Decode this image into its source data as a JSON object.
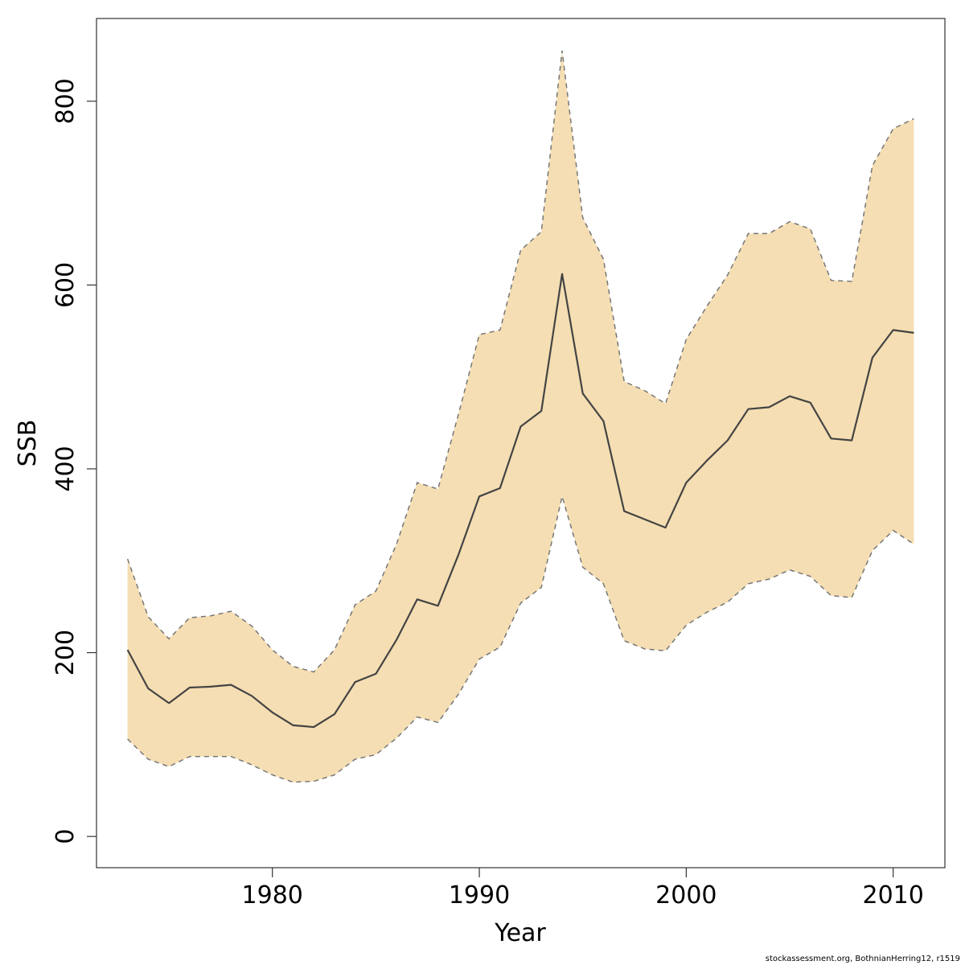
{
  "chart_data": {
    "type": "line",
    "title": "",
    "xlabel": "Year",
    "ylabel": "SSB",
    "xlim": [
      1971.5,
      2012.5
    ],
    "ylim": [
      -34,
      890
    ],
    "x_ticks": [
      1980,
      1990,
      2000,
      2010
    ],
    "y_ticks": [
      0,
      200,
      400,
      600,
      800
    ],
    "grid": false,
    "legend": "none",
    "colors": {
      "band": "#F5DEB3",
      "line": "#444444",
      "bound": "#777777",
      "axis": "#333333"
    },
    "x": [
      1973,
      1974,
      1975,
      1976,
      1977,
      1978,
      1979,
      1980,
      1981,
      1982,
      1983,
      1984,
      1985,
      1986,
      1987,
      1988,
      1989,
      1990,
      1991,
      1992,
      1993,
      1994,
      1995,
      1996,
      1997,
      1998,
      1999,
      2000,
      2001,
      2002,
      2003,
      2004,
      2005,
      2006,
      2007,
      2008,
      2009,
      2010,
      2011
    ],
    "series": [
      {
        "role": "estimate",
        "values": [
          203,
          161,
          145,
          162,
          163,
          165,
          153,
          135,
          121,
          119,
          133,
          168,
          177,
          214,
          258,
          251,
          307,
          370,
          379,
          446,
          463,
          612,
          482,
          452,
          354,
          345,
          336,
          385,
          409,
          431,
          465,
          467,
          479,
          472,
          433,
          431,
          521,
          551,
          548
        ]
      },
      {
        "role": "upper",
        "values": [
          302,
          239,
          215,
          238,
          240,
          245,
          229,
          203,
          185,
          179,
          203,
          252,
          267,
          318,
          385,
          378,
          460,
          546,
          551,
          638,
          658,
          855,
          673,
          628,
          495,
          485,
          471,
          541,
          577,
          611,
          656,
          656,
          669,
          661,
          605,
          604,
          730,
          770,
          781
        ]
      },
      {
        "role": "lower",
        "values": [
          106,
          84,
          76,
          87,
          87,
          87,
          78,
          67,
          59,
          60,
          67,
          84,
          89,
          107,
          130,
          124,
          155,
          193,
          206,
          254,
          271,
          370,
          293,
          275,
          213,
          204,
          202,
          230,
          244,
          255,
          275,
          280,
          290,
          283,
          262,
          260,
          311,
          333,
          318
        ]
      }
    ]
  },
  "footer": {
    "credit": "stockassessment.org, BothnianHerring12, r1519"
  }
}
